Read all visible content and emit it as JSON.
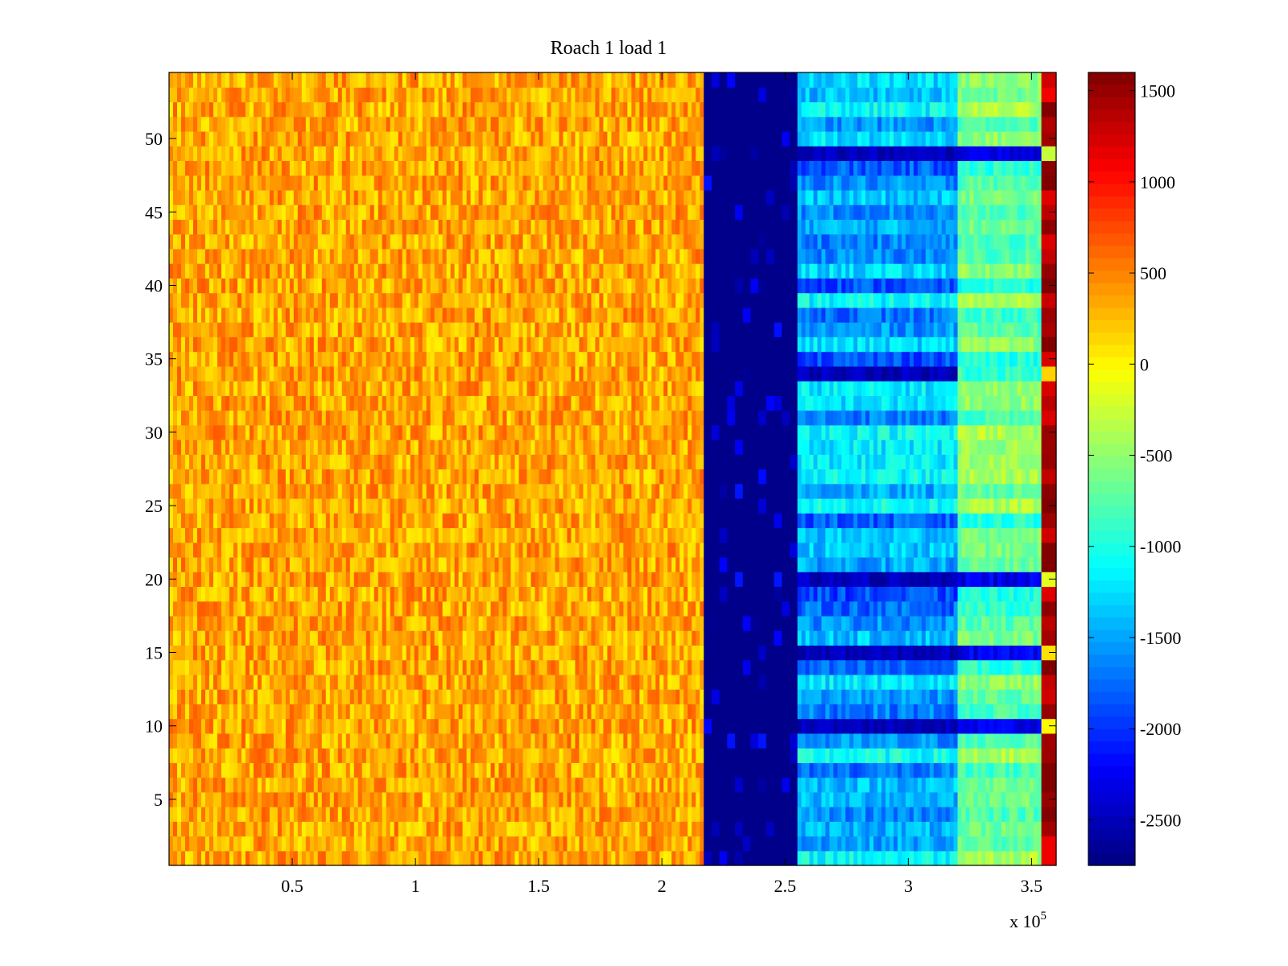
{
  "chart_data": {
    "type": "heatmap",
    "title": "Roach 1 load 1",
    "xlabel": "",
    "ylabel": "",
    "x_exponent_label": "x 10",
    "x_exponent_power": "5",
    "xlim": [
      0,
      3.6
    ],
    "ylim": [
      0.5,
      54.5
    ],
    "x_ticks": [
      0.5,
      1,
      1.5,
      2,
      2.5,
      3,
      3.5
    ],
    "x_tick_labels": [
      "0.5",
      "1",
      "1.5",
      "2",
      "2.5",
      "3",
      "3.5"
    ],
    "y_ticks": [
      5,
      10,
      15,
      20,
      25,
      30,
      35,
      40,
      45,
      50
    ],
    "y_tick_labels": [
      "5",
      "10",
      "15",
      "20",
      "25",
      "30",
      "35",
      "40",
      "45",
      "50"
    ],
    "rows": 54,
    "colormap": "jet",
    "clim": [
      -2750,
      1600
    ],
    "colorbar_ticks": [
      1500,
      1000,
      500,
      0,
      -500,
      -1000,
      -1500,
      -2000,
      -2500
    ],
    "colorbar_tick_labels": [
      "1500",
      "1000",
      "500",
      "0",
      "-500",
      "-1000",
      "-1500",
      "-2000",
      "-2500"
    ],
    "regions": [
      {
        "x_start": 0.0,
        "x_end": 2.17,
        "typical_value": 350
      },
      {
        "x_start": 2.17,
        "x_end": 2.55,
        "typical_value": -2700
      },
      {
        "x_start": 2.55,
        "x_end": 3.2,
        "typical_value": -1500
      },
      {
        "x_start": 3.2,
        "x_end": 3.54,
        "typical_value": -700
      },
      {
        "x_start": 3.54,
        "x_end": 3.6,
        "typical_value": 1400
      }
    ],
    "low_rows": [
      10,
      15,
      20,
      34,
      49
    ],
    "grid": false,
    "colorbar_position": "right"
  }
}
